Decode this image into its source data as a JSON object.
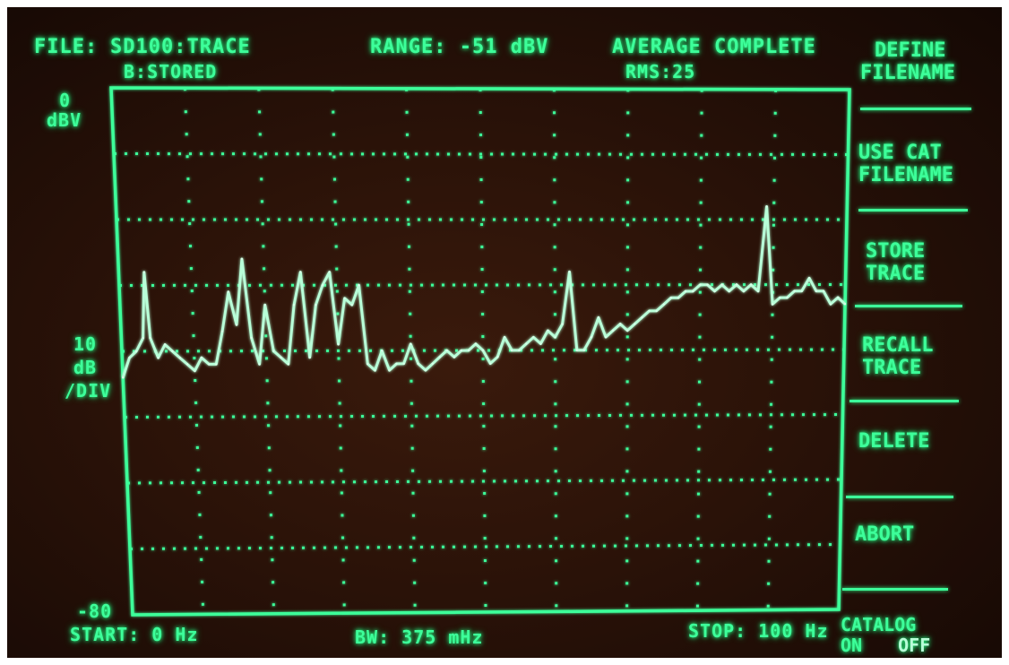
{
  "header": {
    "file_label": "FILE:",
    "file_name": "SD100:TRACE",
    "trace_status": "B:STORED",
    "range": "RANGE: -51 dBV",
    "average_status": "AVERAGE COMPLETE",
    "rms_count": "RMS:25"
  },
  "y_axis": {
    "top_value": "0",
    "top_unit": "dBV",
    "scale_value": "10",
    "scale_unit": "dB",
    "scale_per": "/DIV",
    "bottom_value": "-80"
  },
  "footer": {
    "start": "START: 0 Hz",
    "bandwidth": "BW: 375 mHz",
    "stop": "STOP: 100 Hz"
  },
  "softkeys": [
    {
      "line1": "DEFINE",
      "line2": "FILENAME"
    },
    {
      "line1": "USE CAT",
      "line2": "FILENAME"
    },
    {
      "line1": "STORE",
      "line2": "TRACE"
    },
    {
      "line1": "RECALL",
      "line2": "TRACE"
    },
    {
      "line1": "DELETE",
      "line2": ""
    },
    {
      "line1": "ABORT",
      "line2": ""
    }
  ],
  "catalog": {
    "label": "CATALOG",
    "on": "ON",
    "off": "OFF"
  },
  "chart_data": {
    "type": "line",
    "xlim": [
      0,
      100
    ],
    "ylim": [
      -80,
      0
    ],
    "x": [
      0,
      1,
      2,
      3,
      3.5,
      4,
      5,
      6,
      7,
      8,
      9,
      10,
      11,
      12,
      13,
      14,
      15,
      16,
      17,
      18,
      19,
      20,
      21,
      22,
      23,
      24,
      25,
      26,
      27,
      28,
      29,
      30,
      31,
      32,
      33,
      34,
      35,
      36,
      37,
      38,
      39,
      40,
      41,
      42,
      43,
      44,
      45,
      46,
      47,
      48,
      49,
      50,
      51,
      52,
      53,
      54,
      55,
      56,
      57,
      58,
      59,
      60,
      61,
      62,
      63,
      64,
      65,
      66,
      67,
      68,
      69,
      70,
      71,
      72,
      73,
      74,
      75,
      76,
      77,
      78,
      79,
      80,
      81,
      82,
      83,
      84,
      85,
      86,
      87,
      88,
      89,
      90,
      91,
      92,
      93,
      94,
      95,
      96,
      97,
      98,
      99,
      100
    ],
    "y": [
      -44,
      -41,
      -40,
      -38,
      -28,
      -38,
      -41,
      -39,
      -40,
      -41,
      -42,
      -43,
      -41,
      -42,
      -42,
      -37,
      -31,
      -36,
      -26,
      -38,
      -42,
      -33,
      -40,
      -41,
      -42,
      -33,
      -28,
      -41,
      -33,
      -30,
      -28,
      -39,
      -32,
      -33,
      -30,
      -42,
      -43,
      -40,
      -43,
      -42,
      -42,
      -39,
      -42,
      -43,
      -42,
      -41,
      -40,
      -41,
      -40,
      -40,
      -39,
      -40,
      -42,
      -41,
      -38,
      -40,
      -40,
      -39,
      -38,
      -39,
      -37,
      -38,
      -36,
      -28,
      -40,
      -40,
      -38,
      -35,
      -38,
      -37,
      -36,
      -37,
      -36,
      -35,
      -34,
      -34,
      -33,
      -32,
      -32,
      -31,
      -31,
      -30,
      -30,
      -31,
      -30,
      -31,
      -30,
      -31,
      -30,
      -31,
      -18,
      -33,
      -32,
      -32,
      -31,
      -31,
      -29,
      -31,
      -31,
      -33,
      -32,
      -33
    ]
  }
}
